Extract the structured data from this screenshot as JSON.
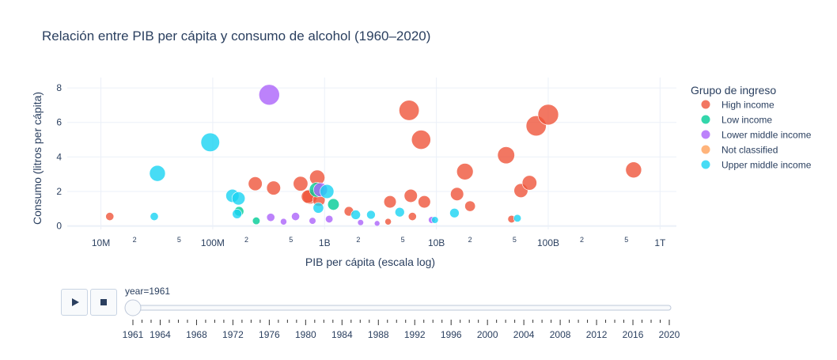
{
  "chart_data": {
    "type": "scatter",
    "title": "Relación entre PIB per cápita y consumo de alcohol (1960–2020)",
    "xlabel": "PIB per cápita (escala log)",
    "ylabel": "Consumo (litros per cápita)",
    "x_scale": "log",
    "xlim": [
      5000000,
      1400000000000
    ],
    "ylim": [
      -0.2,
      8.6
    ],
    "x_ticks": [
      {
        "value": 10000000,
        "label": "10M",
        "major": true
      },
      {
        "value": 20000000,
        "label": "2",
        "major": false
      },
      {
        "value": 50000000,
        "label": "5",
        "major": false
      },
      {
        "value": 100000000,
        "label": "100M",
        "major": true
      },
      {
        "value": 200000000,
        "label": "2",
        "major": false
      },
      {
        "value": 500000000,
        "label": "5",
        "major": false
      },
      {
        "value": 1000000000,
        "label": "1B",
        "major": true
      },
      {
        "value": 2000000000,
        "label": "2",
        "major": false
      },
      {
        "value": 5000000000,
        "label": "5",
        "major": false
      },
      {
        "value": 10000000000,
        "label": "10B",
        "major": true
      },
      {
        "value": 20000000000,
        "label": "2",
        "major": false
      },
      {
        "value": 50000000000,
        "label": "5",
        "major": false
      },
      {
        "value": 100000000000,
        "label": "100B",
        "major": true
      },
      {
        "value": 200000000000,
        "label": "2",
        "major": false
      },
      {
        "value": 500000000000,
        "label": "5",
        "major": false
      },
      {
        "value": 1000000000000,
        "label": "1T",
        "major": true
      }
    ],
    "y_ticks": [
      0,
      2,
      4,
      6,
      8
    ],
    "grid": true,
    "legend_title": "Grupo de ingreso",
    "legend_position": "right",
    "series": [
      {
        "name": "High income",
        "color": "#EF553B",
        "points": [
          {
            "x": 12000000,
            "y": 0.55,
            "s": 0.1
          },
          {
            "x": 240000000,
            "y": 2.45,
            "s": 0.4
          },
          {
            "x": 350000000,
            "y": 2.2,
            "s": 0.4
          },
          {
            "x": 610000000,
            "y": 2.45,
            "s": 0.45
          },
          {
            "x": 740000000,
            "y": 1.7,
            "s": 0.45
          },
          {
            "x": 710000000,
            "y": 1.7,
            "s": 0.35
          },
          {
            "x": 860000000,
            "y": 2.8,
            "s": 0.5
          },
          {
            "x": 890000000,
            "y": 1.5,
            "s": 0.3
          },
          {
            "x": 1650000000,
            "y": 0.85,
            "s": 0.15
          },
          {
            "x": 3700000000,
            "y": 0.25,
            "s": 0.05
          },
          {
            "x": 3850000000,
            "y": 1.4,
            "s": 0.3
          },
          {
            "x": 5700000000,
            "y": 6.7,
            "s": 0.95
          },
          {
            "x": 5900000000,
            "y": 1.75,
            "s": 0.35
          },
          {
            "x": 6100000000,
            "y": 0.55,
            "s": 0.1
          },
          {
            "x": 7300000000,
            "y": 5.0,
            "s": 0.85
          },
          {
            "x": 7800000000,
            "y": 1.4,
            "s": 0.3
          },
          {
            "x": 15300000000,
            "y": 1.85,
            "s": 0.35
          },
          {
            "x": 18000000000,
            "y": 3.15,
            "s": 0.6
          },
          {
            "x": 20000000000,
            "y": 1.15,
            "s": 0.2
          },
          {
            "x": 42000000000,
            "y": 4.1,
            "s": 0.65
          },
          {
            "x": 47000000000,
            "y": 0.4,
            "s": 0.08
          },
          {
            "x": 57000000000,
            "y": 2.05,
            "s": 0.4
          },
          {
            "x": 68000000000,
            "y": 2.5,
            "s": 0.45
          },
          {
            "x": 78000000000,
            "y": 5.8,
            "s": 0.95
          },
          {
            "x": 100000000000,
            "y": 6.45,
            "s": 1.0
          },
          {
            "x": 580000000000,
            "y": 3.25,
            "s": 0.55
          }
        ]
      },
      {
        "name": "Low income",
        "color": "#00CC96",
        "points": [
          {
            "x": 172000000,
            "y": 0.85,
            "s": 0.15
          },
          {
            "x": 245000000,
            "y": 0.3,
            "s": 0.08
          },
          {
            "x": 850000000,
            "y": 2.1,
            "s": 0.45
          },
          {
            "x": 1200000000,
            "y": 1.25,
            "s": 0.25
          }
        ]
      },
      {
        "name": "Lower middle income",
        "color": "#AB63FA",
        "points": [
          {
            "x": 320000000,
            "y": 7.6,
            "s": 1.0
          },
          {
            "x": 920000000,
            "y": 2.1,
            "s": 0.4
          },
          {
            "x": 550000000,
            "y": 0.55,
            "s": 0.1
          },
          {
            "x": 330000000,
            "y": 0.5,
            "s": 0.1
          },
          {
            "x": 430000000,
            "y": 0.25,
            "s": 0.05
          },
          {
            "x": 780000000,
            "y": 0.3,
            "s": 0.06
          },
          {
            "x": 1100000000,
            "y": 0.4,
            "s": 0.08
          },
          {
            "x": 2100000000,
            "y": 0.2,
            "s": 0.04
          },
          {
            "x": 2950000000,
            "y": 0.15,
            "s": 0.03
          },
          {
            "x": 9100000000,
            "y": 0.35,
            "s": 0.06
          }
        ]
      },
      {
        "name": "Upper middle income",
        "color": "#19D3F3",
        "points": [
          {
            "x": 30000000,
            "y": 0.55,
            "s": 0.1
          },
          {
            "x": 32000000,
            "y": 3.05,
            "s": 0.55
          },
          {
            "x": 95000000,
            "y": 4.85,
            "s": 0.8
          },
          {
            "x": 150000000,
            "y": 1.75,
            "s": 0.35
          },
          {
            "x": 165000000,
            "y": 0.7,
            "s": 0.15
          },
          {
            "x": 170000000,
            "y": 1.6,
            "s": 0.35
          },
          {
            "x": 880000000,
            "y": 1.05,
            "s": 0.2
          },
          {
            "x": 1050000000,
            "y": 2.0,
            "s": 0.4
          },
          {
            "x": 1900000000,
            "y": 0.65,
            "s": 0.15
          },
          {
            "x": 2600000000,
            "y": 0.65,
            "s": 0.12
          },
          {
            "x": 4700000000,
            "y": 0.8,
            "s": 0.15
          },
          {
            "x": 9700000000,
            "y": 0.35,
            "s": 0.06
          },
          {
            "x": 14500000000,
            "y": 0.75,
            "s": 0.15
          },
          {
            "x": 53000000000,
            "y": 0.45,
            "s": 0.08
          }
        ]
      },
      {
        "name": "Not classified",
        "color": "#FFA15A",
        "points": []
      }
    ],
    "legend_order": [
      "High income",
      "Low income",
      "Lower middle income",
      "Not classified",
      "Upper middle income"
    ]
  },
  "slider": {
    "current_label": "year=1961",
    "tick_labels": [
      "1961",
      "1964",
      "1968",
      "1972",
      "1976",
      "1980",
      "1984",
      "1988",
      "1992",
      "1996",
      "2000",
      "2004",
      "2008",
      "2012",
      "2016",
      "2020"
    ],
    "min_year": 1961,
    "max_year": 2020,
    "current_year": 1961
  },
  "controls": {
    "play_icon": "play-icon",
    "stop_icon": "stop-icon"
  }
}
